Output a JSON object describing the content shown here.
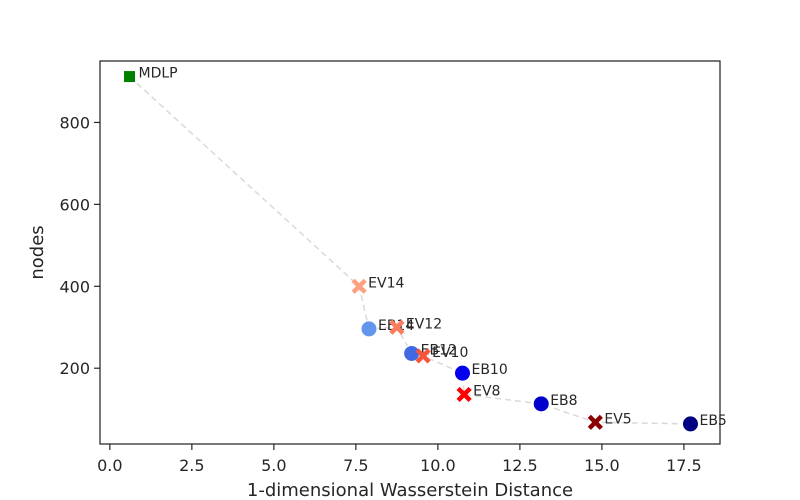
{
  "chart_data": {
    "type": "scatter",
    "title": "",
    "xlabel": "1-dimensional Wasserstein Distance",
    "ylabel": "nodes",
    "xlim": [
      -0.3,
      18.6
    ],
    "ylim": [
      15,
      950
    ],
    "xticks": [
      "0.0",
      "2.5",
      "5.0",
      "7.5",
      "10.0",
      "12.5",
      "15.0",
      "17.5"
    ],
    "xtick_values": [
      0,
      2.5,
      5,
      7.5,
      10,
      12.5,
      15,
      17.5
    ],
    "yticks": [
      "200",
      "400",
      "600",
      "800"
    ],
    "ytick_values": [
      200,
      400,
      600,
      800
    ],
    "grid": false,
    "frontier_line": {
      "style": "dashed",
      "color": "#d9d9d9"
    },
    "points": [
      {
        "label": "MDLP",
        "x": 0.6,
        "y": 912,
        "marker": "square",
        "color": "#008000"
      },
      {
        "label": "EV14",
        "x": 7.6,
        "y": 400,
        "marker": "x",
        "color": "#fca082"
      },
      {
        "label": "EB14",
        "x": 7.9,
        "y": 296,
        "marker": "circle",
        "color": "#6495ed"
      },
      {
        "label": "EV12",
        "x": 8.75,
        "y": 300,
        "marker": "x",
        "color": "#fb7d5d"
      },
      {
        "label": "EB12",
        "x": 9.2,
        "y": 236,
        "marker": "circle",
        "color": "#4169e1"
      },
      {
        "label": "EV10",
        "x": 9.55,
        "y": 230,
        "marker": "x",
        "color": "#f6553c"
      },
      {
        "label": "EB10",
        "x": 10.75,
        "y": 188,
        "marker": "circle",
        "color": "#0000ee"
      },
      {
        "label": "EV8",
        "x": 10.8,
        "y": 136,
        "marker": "x",
        "color": "#ff0000"
      },
      {
        "label": "EB8",
        "x": 13.15,
        "y": 113,
        "marker": "circle",
        "color": "#0000cd"
      },
      {
        "label": "EV5",
        "x": 14.8,
        "y": 68,
        "marker": "x",
        "color": "#8b0000"
      },
      {
        "label": "EB5",
        "x": 17.7,
        "y": 64,
        "marker": "circle",
        "color": "#000080"
      }
    ],
    "frontier_order": [
      "MDLP",
      "EV14",
      "EB14",
      "EV12",
      "EB12",
      "EV10",
      "EB10",
      "EV8",
      "EB8",
      "EV5",
      "EB5"
    ]
  }
}
